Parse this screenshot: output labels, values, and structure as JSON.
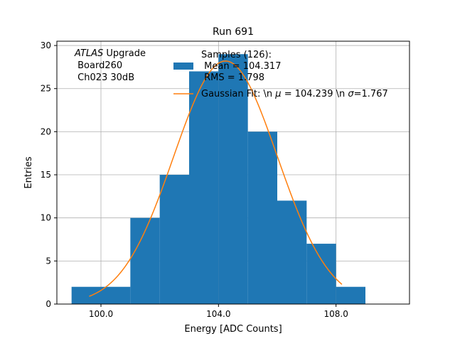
{
  "chart_data": {
    "type": "bar",
    "title": "Run 691",
    "xlabel": "Energy [ADC Counts]",
    "ylabel": "Entries",
    "xlim": [
      98.5,
      110.5
    ],
    "ylim": [
      0,
      30.5
    ],
    "xticks": [
      100,
      104,
      108
    ],
    "xtick_labels": [
      "100.0",
      "104.0",
      "108.0"
    ],
    "yticks": [
      0,
      5,
      10,
      15,
      20,
      25,
      30
    ],
    "ytick_labels": [
      "0",
      "5",
      "10",
      "15",
      "20",
      "25",
      "30"
    ],
    "grid": true,
    "legend_position": "top-right",
    "bin_edges": [
      99,
      100,
      101,
      102,
      103,
      104,
      105,
      106,
      107,
      108,
      109
    ],
    "counts": [
      2,
      2,
      10,
      15,
      27,
      29,
      20,
      12,
      7,
      2
    ],
    "fit": {
      "mu": 104.239,
      "sigma": 1.767,
      "x_min": 99.6,
      "x_max": 108.2,
      "peak": 28.2
    },
    "annotation": {
      "prefix": "ATLAS",
      "suffix": " Upgrade",
      "line2": " Board260",
      "line3": " Ch023 30dB"
    },
    "legend": {
      "hist_line1": "Samples (126):",
      "hist_line2": " Mean = 104.317",
      "hist_line3": " RMS = 1.798",
      "fit_prefix": "Gaussian Fit: \\n ",
      "fit_mu_sym": "μ",
      "fit_middle": " = 104.239 \\n ",
      "fit_sigma_sym": "σ",
      "fit_suffix": "=1.767"
    },
    "colors": {
      "bars": "#1f77b4",
      "fit": "#ff7f0e",
      "grid": "#b0b0b0",
      "axes": "#000000"
    }
  }
}
